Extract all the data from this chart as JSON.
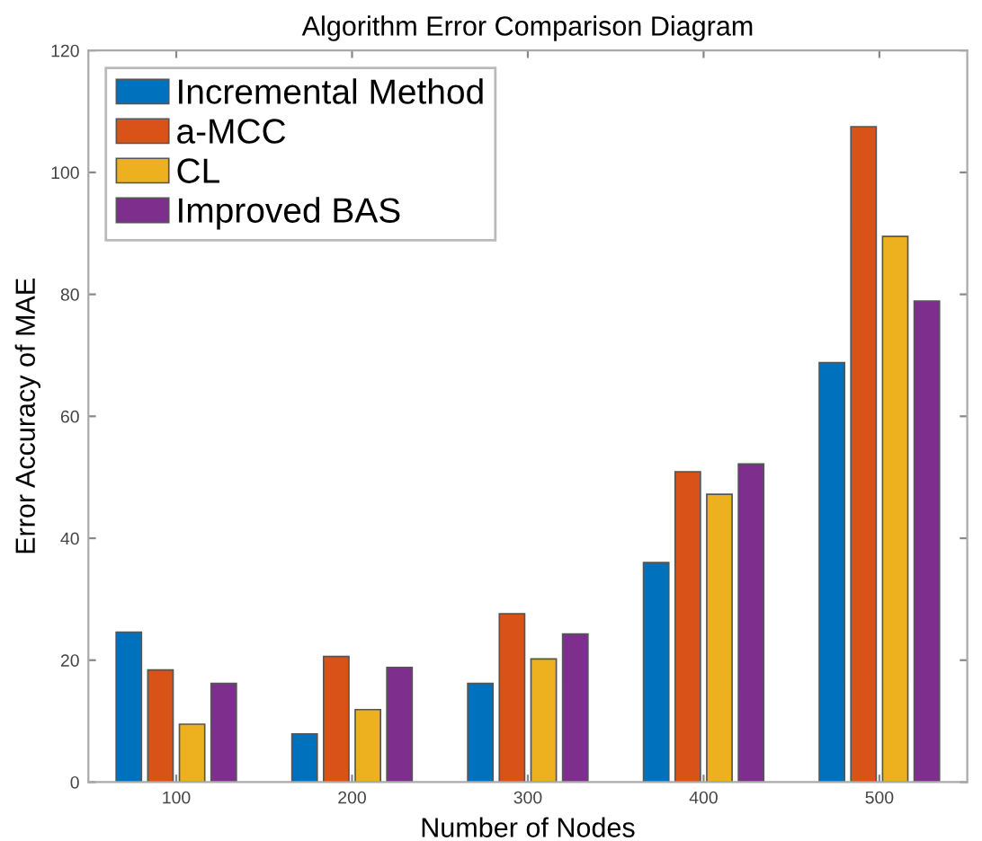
{
  "chart_data": {
    "type": "bar",
    "title": "Algorithm Error Comparison Diagram",
    "xlabel": "Number of Nodes",
    "ylabel": "Error Accuracy of MAE",
    "categories": [
      "100",
      "200",
      "300",
      "400",
      "500"
    ],
    "series": [
      {
        "name": "Incremental Method",
        "color": "#0072bd",
        "values": [
          24.6,
          7.9,
          16.2,
          36.0,
          68.8
        ]
      },
      {
        "name": "a-MCC",
        "color": "#d95319",
        "values": [
          18.4,
          20.6,
          27.6,
          50.9,
          107.5
        ]
      },
      {
        "name": "CL",
        "color": "#edb120",
        "values": [
          9.5,
          11.9,
          20.2,
          47.2,
          89.5
        ]
      },
      {
        "name": "Improved BAS",
        "color": "#7e2f8e",
        "values": [
          16.2,
          18.8,
          24.3,
          52.2,
          78.9
        ]
      }
    ],
    "ylim": [
      0,
      120
    ],
    "yticks": [
      0,
      20,
      40,
      60,
      80,
      100,
      120
    ],
    "grid": false,
    "legend": "top left"
  }
}
